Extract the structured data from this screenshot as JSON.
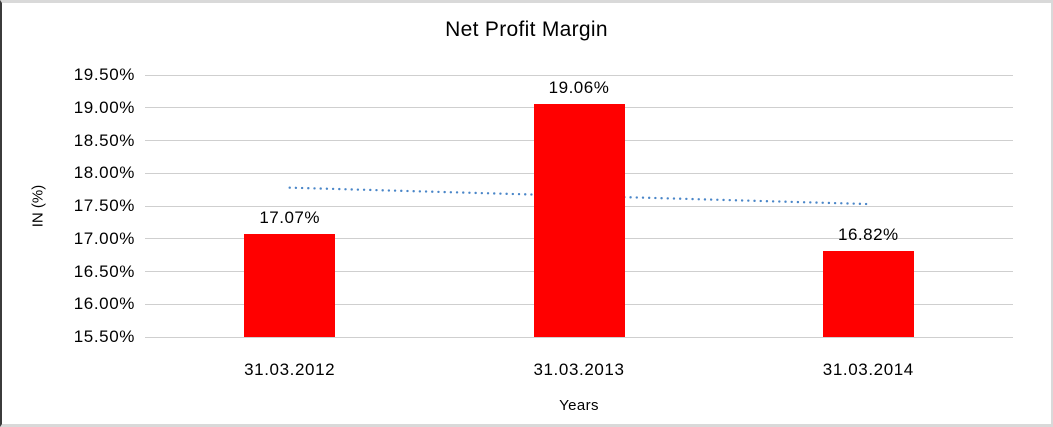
{
  "chart_data": {
    "type": "bar",
    "title": "Net Profit Margin",
    "xlabel": "Years",
    "ylabel": "IN (%)",
    "categories": [
      "31.03.2012",
      "31.03.2013",
      "31.03.2014"
    ],
    "series": [
      {
        "name": "Net Profit Margin",
        "values": [
          17.07,
          19.06,
          16.82
        ]
      }
    ],
    "data_labels": [
      "17.07%",
      "19.06%",
      "16.82%"
    ],
    "ylim": [
      15.5,
      19.5
    ],
    "ytick_step": 0.5,
    "ytick_labels": [
      "19.50%",
      "19.00%",
      "18.50%",
      "18.00%",
      "17.50%",
      "17.00%",
      "16.50%",
      "16.00%",
      "15.50%"
    ],
    "grid": true,
    "legend_position": "none",
    "bar_color": "#ff0000",
    "trendline": {
      "type": "linear",
      "style": "dotted",
      "color": "#4a86c8",
      "start_value": 17.78,
      "end_value": 17.53
    }
  },
  "colors": {
    "background": "#ffffff",
    "gridline": "#cfcfcf",
    "text": "#000000",
    "frame_border_left": "#3b3b3b",
    "frame_border_outer": "#d9d9d9"
  }
}
